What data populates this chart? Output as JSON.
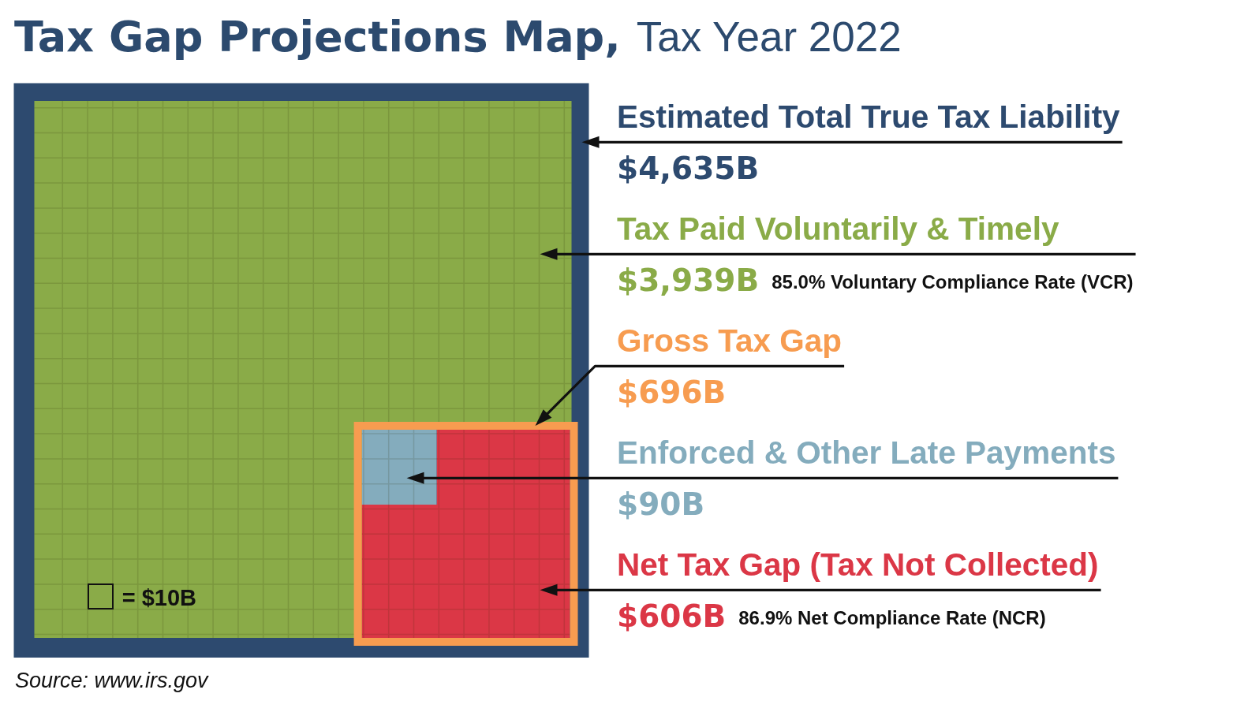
{
  "chart_data": {
    "type": "other",
    "title": "Tax Gap Projections Map,",
    "subtitle": "Tax Year 2022",
    "categories": [
      "Estimated Total True Tax Liability",
      "Tax Paid Voluntarily & Timely",
      "Gross Tax Gap",
      "Enforced & Other Late Payments",
      "Net Tax Gap (Tax Not Collected)"
    ],
    "values": [
      4635,
      3939,
      696,
      90,
      606
    ],
    "value_labels": [
      "$4,635B",
      "$3,939B",
      "$696B",
      "$90B",
      "$606B"
    ],
    "colors": [
      "#2d4a6f",
      "#8aab48",
      "#f79c50",
      "#84acbd",
      "#db3746"
    ],
    "annotations": [
      {
        "text": "85.0% Voluntary Compliance Rate (VCR)",
        "x": "Tax Paid Voluntarily & Timely"
      },
      {
        "text": "86.9% Net Compliance Rate (NCR)",
        "x": "Net Tax Gap (Tax Not Collected)"
      },
      "= $10B",
      "Source: www.irs.gov"
    ]
  }
}
